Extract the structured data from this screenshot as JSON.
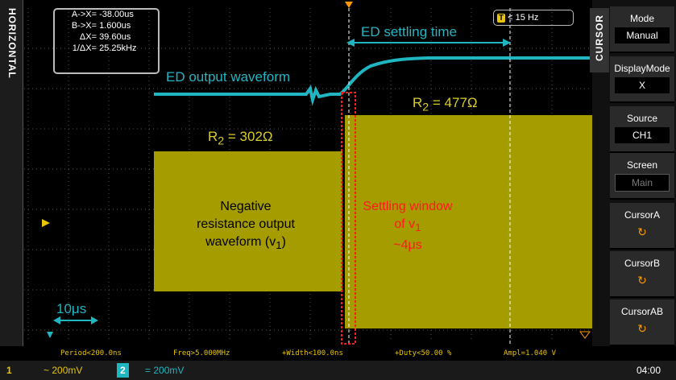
{
  "side_label": "HORIZONTAL",
  "cursor_readout": [
    {
      "label": "A->X=",
      "value": "-38.00us"
    },
    {
      "label": "B->X=",
      "value": "1.600us"
    },
    {
      "label": "ΔX=",
      "value": "39.60us"
    },
    {
      "label": "1/ΔX=",
      "value": "25.25kHz"
    }
  ],
  "trigger": {
    "icon": "T",
    "text": "< 15 Hz"
  },
  "menu_tab": "CURSOR",
  "menu": [
    {
      "title": "Mode",
      "value": "Manual"
    },
    {
      "title": "DisplayMode",
      "value": "X"
    },
    {
      "title": "Source",
      "value": "CH1"
    },
    {
      "title": "Screen",
      "value": "Main"
    },
    {
      "title": "CursorA"
    },
    {
      "title": "CursorB"
    },
    {
      "title": "CursorAB"
    }
  ],
  "annotations": {
    "ed_settling_time": "ED settling time",
    "ed_output": "ED output waveform",
    "r_high": {
      "main": "R",
      "sub": "2",
      "rest": " = 477Ω"
    },
    "r_low": {
      "main": "R",
      "sub": "2",
      "rest": " = 302Ω"
    },
    "negative_resistance": {
      "line1": "Negative",
      "line2": "resistance output",
      "line3": "waveform (v",
      "sub": "1",
      "close": ")"
    },
    "settling_window": {
      "line1": "Settling window",
      "line2": "of v",
      "sub": "1",
      "line3": "~4μs"
    },
    "time_scale": "10μs"
  },
  "measurements": [
    "Period<200.0ns",
    "Freq>5.000MHz",
    "+Width<100.0ns",
    "+Duty<50.00 %",
    "Ampl=1.040 V"
  ],
  "status_bar": {
    "ch1": {
      "number": "1",
      "text": "~ 200mV"
    },
    "ch2": {
      "number": "2",
      "text": "= 200mV"
    },
    "time": "04:00"
  }
}
